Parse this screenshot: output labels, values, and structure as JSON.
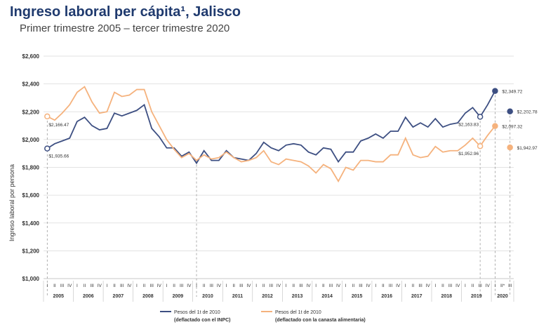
{
  "header": {
    "title": "Ingreso laboral per cápita¹, Jalisco",
    "subtitle": "Primer trimestre 2005 – tercer trimestre 2020"
  },
  "chart_data": {
    "type": "line",
    "title": "Ingreso laboral per cápita¹, Jalisco",
    "subtitle": "Primer trimestre 2005 – tercer trimestre 2020",
    "ylabel": "Ingreso laboral por persona",
    "xlabel": "",
    "ylim": [
      1000,
      2600
    ],
    "yticks": [
      1000,
      1200,
      1400,
      1600,
      1800,
      2000,
      2200,
      2400,
      2600
    ],
    "ytick_labels": [
      "$1,000",
      "$1,200",
      "$1,400",
      "$1,600",
      "$1,800",
      "$2,000",
      "$2,200",
      "$2,400",
      "$2,600"
    ],
    "grid": true,
    "legend_position": "bottom",
    "years": [
      "2005",
      "2006",
      "2007",
      "2008",
      "2009",
      "2010",
      "2011",
      "2012",
      "2013",
      "2014",
      "2015",
      "2016",
      "2017",
      "2018",
      "2019",
      "2020"
    ],
    "quarter_labels": [
      "I",
      "II",
      "III",
      "IV"
    ],
    "quarter_labels_2020": [
      "I",
      "II*",
      "III"
    ],
    "x": [
      "2005-I",
      "2005-II",
      "2005-III",
      "2005-IV",
      "2006-I",
      "2006-II",
      "2006-III",
      "2006-IV",
      "2007-I",
      "2007-II",
      "2007-III",
      "2007-IV",
      "2008-I",
      "2008-II",
      "2008-III",
      "2008-IV",
      "2009-I",
      "2009-II",
      "2009-III",
      "2009-IV",
      "2010-I",
      "2010-II",
      "2010-III",
      "2010-IV",
      "2011-I",
      "2011-II",
      "2011-III",
      "2011-IV",
      "2012-I",
      "2012-II",
      "2012-III",
      "2012-IV",
      "2013-I",
      "2013-II",
      "2013-III",
      "2013-IV",
      "2014-I",
      "2014-II",
      "2014-III",
      "2014-IV",
      "2015-I",
      "2015-II",
      "2015-III",
      "2015-IV",
      "2016-I",
      "2016-II",
      "2016-III",
      "2016-IV",
      "2017-I",
      "2017-II",
      "2017-III",
      "2017-IV",
      "2018-I",
      "2018-II",
      "2018-III",
      "2018-IV",
      "2019-I",
      "2019-II",
      "2019-III",
      "2019-IV",
      "2020-I",
      "2020-II",
      "2020-III"
    ],
    "series": [
      {
        "name": "Pesos del 1t de 2010\n(deflactado con el INPC)",
        "color": "#3d4f82",
        "values": [
          1935.66,
          1970,
          1990,
          2010,
          2130,
          2160,
          2100,
          2070,
          2080,
          2190,
          2170,
          2190,
          2210,
          2250,
          2080,
          2020,
          1940,
          1940,
          1880,
          1910,
          1830,
          1920,
          1850,
          1850,
          1920,
          1870,
          1860,
          1850,
          1900,
          1980,
          1940,
          1920,
          1960,
          1970,
          1960,
          1910,
          1890,
          1940,
          1930,
          1840,
          1910,
          1910,
          1990,
          2010,
          2040,
          2010,
          2060,
          2060,
          2160,
          2090,
          2120,
          2090,
          2150,
          2090,
          2110,
          2120,
          2190,
          2230,
          2163.83,
          2250,
          2349.72,
          null,
          2202.78
        ],
        "labels": {
          "0": "$1,935.66",
          "58": "$2,163.83",
          "60": "$2,349.72",
          "62": "$2,202.78"
        }
      },
      {
        "name": "Pesos del 1t de 2010\n(deflactado con la canasta alimentaria)",
        "color": "#f5b27d",
        "values": [
          2166.47,
          2140,
          2190,
          2250,
          2340,
          2380,
          2270,
          2190,
          2200,
          2340,
          2310,
          2320,
          2360,
          2360,
          2200,
          2100,
          2000,
          1930,
          1870,
          1900,
          1850,
          1890,
          1860,
          1870,
          1910,
          1870,
          1840,
          1850,
          1870,
          1920,
          1840,
          1820,
          1860,
          1850,
          1840,
          1810,
          1760,
          1820,
          1790,
          1700,
          1800,
          1780,
          1850,
          1850,
          1840,
          1840,
          1890,
          1890,
          2010,
          1890,
          1870,
          1880,
          1950,
          1910,
          1920,
          1920,
          1960,
          2010,
          1952.96,
          2030,
          2097.32,
          null,
          1942.97
        ],
        "labels": {
          "0": "$2,166.47",
          "58": "$1,952.96",
          "60": "$2,097.32",
          "62": "$1,942.97"
        }
      }
    ]
  }
}
